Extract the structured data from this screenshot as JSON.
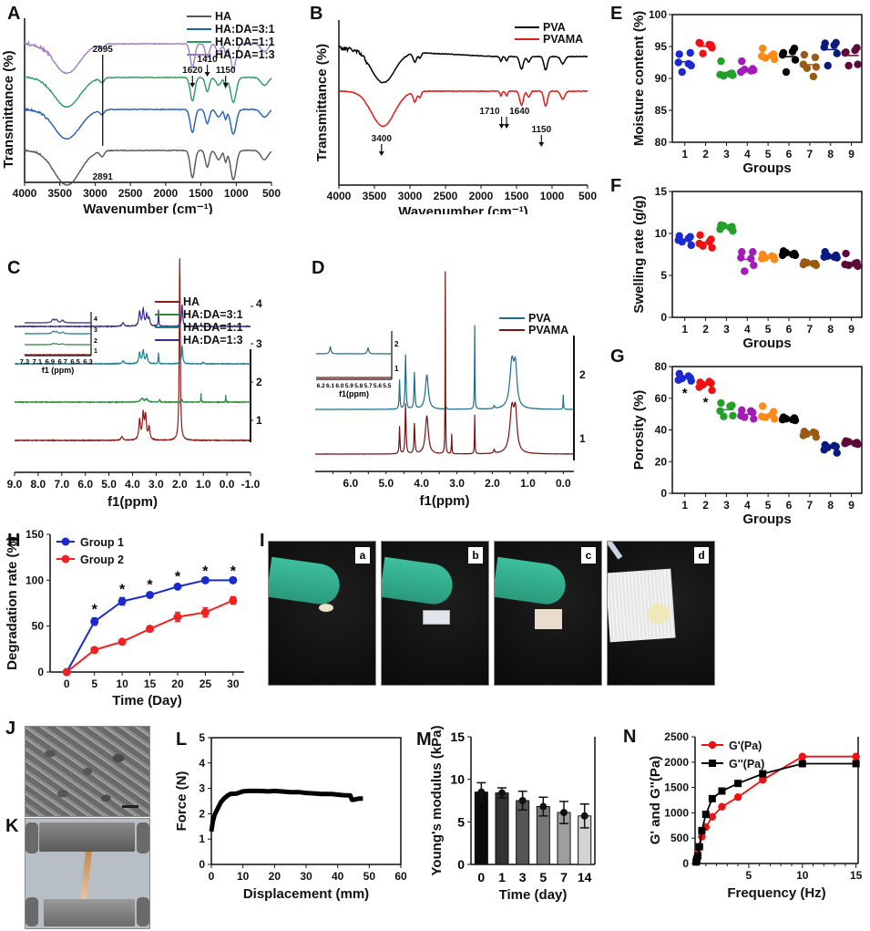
{
  "panel_labels": [
    "A",
    "B",
    "C",
    "D",
    "E",
    "F",
    "G",
    "H",
    "I",
    "J",
    "K",
    "L",
    "M",
    "N"
  ],
  "chart_data": [
    {
      "id": "A",
      "type": "line",
      "title": "",
      "xlabel": "Wavenumber (cm⁻¹)",
      "ylabel": "Transmittance (%)",
      "xlim": [
        4000,
        500
      ],
      "xticks": [
        4000,
        3500,
        3000,
        2500,
        2000,
        1500,
        1000,
        500
      ],
      "series": [
        {
          "name": "HA",
          "color": "#555555"
        },
        {
          "name": "HA:DA=3:1",
          "color": "#1f5fb5"
        },
        {
          "name": "HA:DA=1:1",
          "color": "#2a9a5e"
        },
        {
          "name": "HA:DA=1:3",
          "color": "#a07cc5"
        }
      ],
      "annotations": [
        "2895",
        "2891",
        "1620",
        "1410",
        "1150"
      ],
      "legend": "top-right"
    },
    {
      "id": "B",
      "type": "line",
      "xlabel": "Wavenumber (cm⁻¹)",
      "ylabel": "Transmittance (%)",
      "xlim": [
        4000,
        500
      ],
      "xticks": [
        4000,
        3500,
        3000,
        2500,
        2000,
        1500,
        1000,
        500
      ],
      "series": [
        {
          "name": "PVA",
          "color": "#000000"
        },
        {
          "name": "PVAMA",
          "color": "#e31a1c"
        }
      ],
      "annotations": [
        "3400",
        "1710",
        "1640",
        "1150"
      ],
      "legend": "top-right"
    },
    {
      "id": "C",
      "type": "line",
      "xlabel": "f1(ppm)",
      "xlim": [
        9.0,
        -1.0
      ],
      "xticks": [
        "9.0",
        "8.0",
        "7.0",
        "6.0",
        "5.0",
        "4.0",
        "3.0",
        "2.0",
        "1.0",
        "0.0",
        "-1.0"
      ],
      "yticks": [
        "1",
        "2",
        "3",
        "4"
      ],
      "series": [
        {
          "name": "HA",
          "color": "#8b1a1a"
        },
        {
          "name": "HA:DA=3:1",
          "color": "#2e8b3e"
        },
        {
          "name": "HA:DA=1:1",
          "color": "#1e7f8f"
        },
        {
          "name": "HA:DA=1:3",
          "color": "#3b2a8a"
        }
      ],
      "inset": {
        "xlabel": "f1 (ppm)",
        "xticks": [
          "7.3",
          "7.1",
          "6.9",
          "6.7",
          "6.5",
          "6.3"
        ],
        "yticks": [
          "1",
          "2",
          "3",
          "4"
        ]
      },
      "legend": "top-right"
    },
    {
      "id": "D",
      "type": "line",
      "xlabel": "f1(ppm)",
      "xlim": [
        7.0,
        -0.3
      ],
      "xticks": [
        "6.0",
        "5.0",
        "4.0",
        "3.0",
        "2.0",
        "1.0",
        "0.0"
      ],
      "yticks": [
        "1",
        "2"
      ],
      "series": [
        {
          "name": "PVA",
          "color": "#1e6f8a"
        },
        {
          "name": "PVAMA",
          "color": "#7a1010"
        }
      ],
      "inset": {
        "xlabel": "f1(ppm)",
        "xticks": [
          "6.2",
          "6.1",
          "6.0",
          "5.9",
          "5.8",
          "5.7",
          "5.6",
          "5.5"
        ],
        "yticks": [
          "1",
          "2"
        ]
      },
      "legend": "top-right"
    },
    {
      "id": "E",
      "type": "scatter",
      "xlabel": "Groups",
      "ylabel": "Moisture content (%)",
      "ylim": [
        80,
        100
      ],
      "yticks": [
        80,
        85,
        90,
        95,
        100
      ],
      "categories": [
        "1",
        "2",
        "3",
        "4",
        "5",
        "6",
        "7",
        "8",
        "9"
      ],
      "colors": [
        "#1a2ad0",
        "#ee1111",
        "#22a02a",
        "#a21ab8",
        "#ff8a1a",
        "#000000",
        "#9a5a12",
        "#0a1a80",
        "#5c0a3a"
      ],
      "points": [
        [
          93.8,
          94.0,
          92.5,
          92.0,
          91.0,
          92.3
        ],
        [
          95.5,
          95.2,
          95.6,
          94.8,
          93.9,
          95.3
        ],
        [
          92.7,
          90.8,
          90.6,
          90.5,
          90.4,
          90.7
        ],
        [
          92.7,
          91.5,
          91.0,
          91.3,
          91.4,
          91.2
        ],
        [
          94.7,
          93.8,
          93.5,
          93.0,
          93.2,
          93.6
        ],
        [
          94.0,
          94.7,
          93.7,
          92.9,
          91.0,
          94.2
        ],
        [
          93.7,
          93.3,
          92.2,
          91.8,
          91.6,
          90.3
        ],
        [
          95.5,
          95.6,
          94.9,
          93.9,
          92.0,
          95.2
        ],
        [
          94.1,
          94.8,
          94.0,
          92.2,
          92.0,
          94.4
        ]
      ]
    },
    {
      "id": "F",
      "type": "scatter",
      "xlabel": "Groups",
      "ylabel": "Swelling rate (g/g)",
      "ylim": [
        0,
        15
      ],
      "yticks": [
        0,
        5,
        10,
        15
      ],
      "categories": [
        "1",
        "2",
        "3",
        "4",
        "5",
        "6",
        "7",
        "8",
        "9"
      ],
      "colors": [
        "#1a2ad0",
        "#ee1111",
        "#22a02a",
        "#a21ab8",
        "#ff8a1a",
        "#000000",
        "#9a5a12",
        "#0a1a80",
        "#5c0a3a"
      ],
      "points": [
        [
          9.7,
          9.6,
          9.2,
          8.6,
          9.0,
          9.4
        ],
        [
          9.8,
          9.3,
          8.8,
          8.3,
          8.5,
          9.0
        ],
        [
          11.0,
          10.8,
          10.5,
          10.3,
          10.9,
          10.7
        ],
        [
          7.8,
          7.8,
          7.1,
          6.2,
          5.5,
          7.0
        ],
        [
          7.5,
          7.2,
          7.0,
          6.9,
          7.1,
          7.3
        ],
        [
          7.9,
          7.6,
          7.4,
          7.4,
          7.7,
          7.5
        ],
        [
          6.6,
          6.4,
          6.3,
          6.2,
          6.5,
          6.4
        ],
        [
          7.8,
          7.4,
          7.2,
          7.1,
          7.3,
          7.2
        ],
        [
          7.6,
          6.5,
          6.3,
          6.1,
          6.2,
          6.4
        ]
      ]
    },
    {
      "id": "G",
      "type": "scatter",
      "xlabel": "Groups",
      "ylabel": "Porosity (%)",
      "ylim": [
        0,
        80
      ],
      "yticks": [
        0,
        20,
        40,
        60,
        80
      ],
      "categories": [
        "1",
        "2",
        "3",
        "4",
        "5",
        "6",
        "7",
        "8",
        "9"
      ],
      "colors": [
        "#1a2ad0",
        "#ee1111",
        "#22a02a",
        "#a21ab8",
        "#ff8a1a",
        "#000000",
        "#9a5a12",
        "#0a1a80",
        "#5c0a3a"
      ],
      "points": [
        [
          75.5,
          73.0,
          71.5,
          71.0,
          72.5,
          74.0
        ],
        [
          70.0,
          69.5,
          67.0,
          65.0,
          68.5,
          70.5
        ],
        [
          57.0,
          55.5,
          52.0,
          49.0,
          48.5,
          55.0
        ],
        [
          52.5,
          51.0,
          49.0,
          47.0,
          48.0,
          52.0
        ],
        [
          55.0,
          51.5,
          48.5,
          47.0,
          48.0,
          49.5
        ],
        [
          48.0,
          47.5,
          46.5,
          46.0,
          47.0,
          46.5
        ],
        [
          39.0,
          38.0,
          36.5,
          35.5,
          37.5,
          38.5
        ],
        [
          30.5,
          29.5,
          27.5,
          25.5,
          29.0,
          30.0
        ],
        [
          33.0,
          32.0,
          31.5,
          31.0,
          32.5,
          31.5
        ]
      ],
      "annotations": [
        {
          "group": "1",
          "text": "*"
        },
        {
          "group": "2",
          "text": "*"
        }
      ]
    },
    {
      "id": "H",
      "type": "line",
      "xlabel": "Time (Day)",
      "ylabel": "Degradation rate (%)",
      "xlim": [
        -3,
        32
      ],
      "xticks": [
        0,
        5,
        10,
        15,
        20,
        25,
        30
      ],
      "ylim": [
        0,
        150
      ],
      "yticks": [
        0,
        50,
        100,
        150
      ],
      "x": [
        0,
        5,
        10,
        15,
        20,
        25,
        30
      ],
      "series": [
        {
          "name": "Group 1",
          "color": "#1a2ad0",
          "values": [
            0,
            55,
            77,
            84,
            93,
            100,
            100
          ],
          "err": [
            0,
            4,
            4,
            2,
            2,
            1,
            1
          ]
        },
        {
          "name": "Group 2",
          "color": "#ee2222",
          "values": [
            0,
            24,
            33,
            47,
            60,
            65,
            78
          ],
          "err": [
            0,
            3,
            2,
            3,
            5,
            5,
            4
          ]
        }
      ],
      "significance": {
        "text": "*",
        "x": [
          5,
          10,
          15,
          20,
          25,
          30
        ]
      },
      "legend": "top-left"
    },
    {
      "id": "L",
      "type": "line",
      "xlabel": "Displacement (mm)",
      "ylabel": "Force (N)",
      "xlim": [
        0,
        60
      ],
      "xticks": [
        0,
        10,
        20,
        30,
        40,
        50,
        60
      ],
      "ylim": [
        0,
        5
      ],
      "yticks": [
        0,
        1,
        2,
        3,
        4,
        5
      ],
      "x": [
        0,
        0.5,
        1,
        2,
        3,
        4,
        5,
        6,
        8,
        10,
        12,
        15,
        18,
        20,
        22,
        25,
        28,
        30,
        33,
        35,
        38,
        40,
        42,
        44,
        44.5,
        45,
        46,
        47,
        48
      ],
      "values": [
        1.3,
        1.7,
        1.95,
        2.2,
        2.45,
        2.6,
        2.7,
        2.78,
        2.8,
        2.88,
        2.9,
        2.9,
        2.88,
        2.9,
        2.88,
        2.85,
        2.85,
        2.82,
        2.8,
        2.78,
        2.78,
        2.75,
        2.73,
        2.72,
        2.55,
        2.55,
        2.58,
        2.6,
        2.6
      ],
      "series_color": "#000000"
    },
    {
      "id": "M",
      "type": "bar",
      "xlabel": "Time (day)",
      "ylabel": "Young's modulus (kPa)",
      "ylim": [
        0,
        15
      ],
      "yticks": [
        0,
        5,
        10,
        15
      ],
      "categories": [
        "0",
        "1",
        "3",
        "5",
        "7",
        "14"
      ],
      "values": [
        8.5,
        8.4,
        7.5,
        6.8,
        6.1,
        5.7
      ],
      "err": [
        1.1,
        0.6,
        1.1,
        1.1,
        1.3,
        1.4
      ],
      "bar_colors": [
        "#0a0a0a",
        "#333333",
        "#555555",
        "#777777",
        "#9e9e9e",
        "#d4d4d4"
      ]
    },
    {
      "id": "N",
      "type": "line",
      "xlabel": "Frequency (Hz)",
      "ylabel": "G' and G''(Pa)",
      "xlim": [
        0,
        15
      ],
      "xticks": [
        5,
        10,
        15
      ],
      "ylim": [
        0,
        2500
      ],
      "yticks": [
        0,
        500,
        1000,
        1500,
        2000,
        2500
      ],
      "series": [
        {
          "name": "G'(Pa)",
          "color": "#ee1111",
          "marker": "circle",
          "x": [
            0.1,
            0.16,
            0.25,
            0.4,
            0.63,
            1.0,
            1.6,
            2.5,
            4.0,
            6.3,
            10,
            15
          ],
          "values": [
            40,
            120,
            200,
            330,
            530,
            720,
            920,
            1120,
            1310,
            1650,
            2110,
            2110
          ]
        },
        {
          "name": "G''(Pa)",
          "color": "#000000",
          "marker": "square",
          "x": [
            0.1,
            0.16,
            0.25,
            0.4,
            0.63,
            1.0,
            1.6,
            2.5,
            4.0,
            6.3,
            10,
            15
          ],
          "values": [
            30,
            80,
            150,
            330,
            650,
            970,
            1280,
            1430,
            1580,
            1770,
            1970,
            1970
          ]
        }
      ],
      "legend": "top-left"
    }
  ],
  "figures": {
    "I": {
      "subpanels": [
        "a",
        "b",
        "c",
        "d"
      ]
    },
    "J": {
      "description": "SEM micrograph with scale bar"
    },
    "K": {
      "description": "Tensile test clamp photo"
    }
  }
}
